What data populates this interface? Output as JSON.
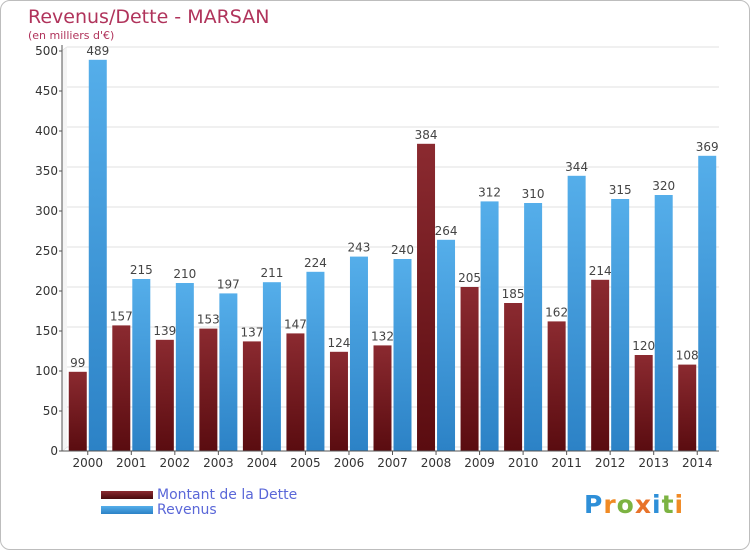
{
  "header": {
    "title": "Revenus/Dette - MARSAN",
    "subtitle": "(en milliers d'€)"
  },
  "legend": {
    "debt_label": "Montant de la Dette",
    "revenue_label": "Revenus"
  },
  "logo": {
    "text": "Proxiti",
    "letters": [
      {
        "ch": "P",
        "color": "#2e8fd8"
      },
      {
        "ch": "r",
        "color": "#f08a24"
      },
      {
        "ch": "o",
        "color": "#7cb342"
      },
      {
        "ch": "x",
        "color": "#e8732a"
      },
      {
        "ch": "i",
        "color": "#2e8fd8"
      },
      {
        "ch": "t",
        "color": "#7cb342"
      },
      {
        "ch": "i",
        "color": "#f08a24"
      }
    ]
  },
  "colors": {
    "debt": "#7a1f24",
    "debt_dark": "#4a0a0e",
    "revenue": "#4aa3e6",
    "revenue_dark": "#2a7fc4",
    "title": "#b0335b",
    "legend_text": "#5a67d8"
  },
  "chart_data": {
    "type": "bar",
    "title": "Revenus/Dette - MARSAN",
    "subtitle": "(en milliers d'€)",
    "categories": [
      "2000",
      "2001",
      "2002",
      "2003",
      "2004",
      "2005",
      "2006",
      "2007",
      "2008",
      "2009",
      "2010",
      "2011",
      "2012",
      "2013",
      "2014"
    ],
    "series": [
      {
        "name": "Montant de la Dette",
        "values": [
          99,
          157,
          139,
          153,
          137,
          147,
          124,
          132,
          384,
          205,
          185,
          162,
          214,
          120,
          108
        ]
      },
      {
        "name": "Revenus",
        "values": [
          489,
          215,
          210,
          197,
          211,
          224,
          243,
          240,
          264,
          312,
          310,
          344,
          315,
          320,
          369
        ]
      }
    ],
    "ylim": [
      0,
      500
    ],
    "yticks": [
      0,
      50,
      100,
      150,
      200,
      250,
      300,
      350,
      400,
      450,
      500
    ],
    "grid": true,
    "legend_position": "bottom-left"
  }
}
